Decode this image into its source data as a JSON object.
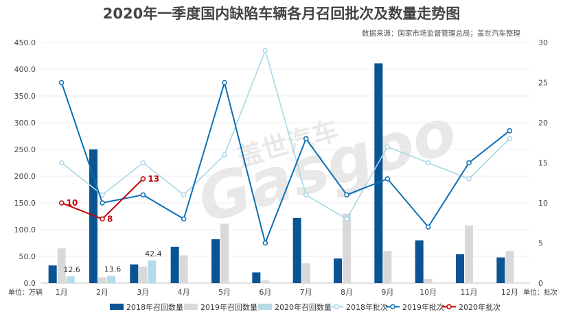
{
  "chart_data": {
    "type": "bar+line",
    "title": "2020年一季度国内缺陷车辆各月召回批次及数量走势图",
    "source": "数据来源：国家市场监督管理总局；盖世汽车整理",
    "watermark": {
      "brand_cn": "盖世汽车",
      "brand_en": "Gasgoo"
    },
    "categories": [
      "1月",
      "2月",
      "3月",
      "4月",
      "5月",
      "6月",
      "7月",
      "8月",
      "9月",
      "10月",
      "11月",
      "12月"
    ],
    "y_left": {
      "unit": "单位：万辆",
      "range": [
        0,
        450
      ],
      "ticks": [
        "0.0",
        "50.0",
        "100.0",
        "150.0",
        "200.0",
        "250.0",
        "300.0",
        "350.0",
        "400.0",
        "450.0"
      ]
    },
    "y_right": {
      "unit": "单位：批次",
      "range": [
        0,
        30
      ],
      "ticks": [
        "0",
        "5",
        "10",
        "15",
        "20",
        "25",
        "30"
      ]
    },
    "bar_series": [
      {
        "name": "2018年召回数量",
        "color": "#0a5493",
        "values": [
          33,
          250,
          35,
          68,
          82,
          20,
          122,
          46,
          411,
          80,
          54,
          48
        ]
      },
      {
        "name": "2019年召回数量",
        "color": "#d9d9d9",
        "values": [
          65,
          11,
          31,
          52,
          111,
          5,
          37,
          130,
          60,
          8,
          108,
          60
        ]
      },
      {
        "name": "2020年召回数量",
        "color": "#b5dbe9",
        "values": [
          12.6,
          13.6,
          42.4,
          null,
          null,
          null,
          null,
          null,
          null,
          null,
          null,
          null
        ],
        "labels": [
          "12.6",
          "13.6",
          "42.4"
        ]
      }
    ],
    "line_series": [
      {
        "name": "2018年批次",
        "color": "#a9d7e6",
        "values": [
          15,
          11,
          15,
          11,
          16,
          29,
          11,
          8,
          17,
          15,
          13,
          18
        ]
      },
      {
        "name": "2019年批次",
        "color": "#0a6eb4",
        "values": [
          25,
          10,
          11,
          8,
          25,
          5,
          18,
          11,
          13,
          7,
          15,
          19
        ]
      },
      {
        "name": "2020年批次",
        "color": "#c00000",
        "values": [
          10,
          8,
          13,
          null,
          null,
          null,
          null,
          null,
          null,
          null,
          null,
          null
        ],
        "labels": [
          "10",
          "8",
          "13"
        ]
      }
    ],
    "legend_position": "bottom"
  }
}
